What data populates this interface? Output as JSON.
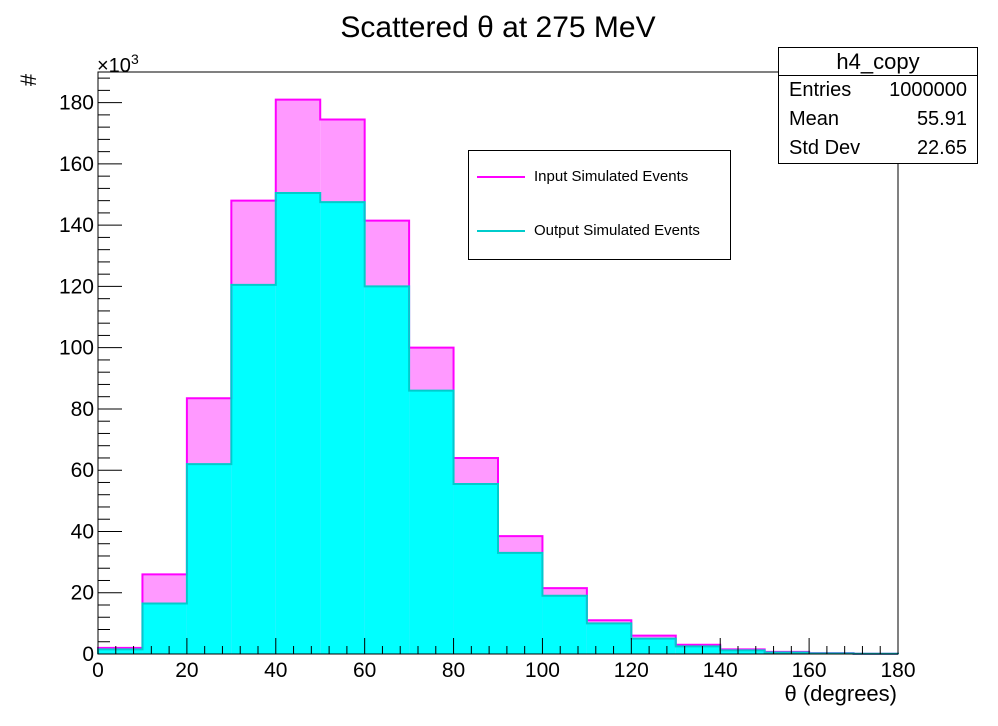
{
  "chart_data": {
    "type": "bar",
    "title": "Scattered θ at 275 MeV",
    "xlabel": "θ (degrees)",
    "ylabel": "#",
    "y_multiplier_label": "×10",
    "y_multiplier_exp": "3",
    "xlim": [
      0,
      180
    ],
    "ylim": [
      0,
      190
    ],
    "x_ticks": [
      0,
      20,
      40,
      60,
      80,
      100,
      120,
      140,
      160,
      180
    ],
    "y_ticks": [
      0,
      20,
      40,
      60,
      80,
      100,
      120,
      140,
      160,
      180
    ],
    "bin_edges": [
      0,
      10,
      20,
      30,
      40,
      50,
      60,
      70,
      80,
      90,
      100,
      110,
      120,
      130,
      140,
      150,
      160,
      170,
      180
    ],
    "series": [
      {
        "name": "Input Simulated Events",
        "line_color": "#ff00ff",
        "fill_color": "#ff99ff",
        "values": [
          2.0,
          26.0,
          83.5,
          148.0,
          181.0,
          174.5,
          141.5,
          100.0,
          64.0,
          38.5,
          21.5,
          11.0,
          6.0,
          3.0,
          1.5,
          0.7,
          0.3,
          0.1
        ]
      },
      {
        "name": "Output Simulated Events",
        "line_color": "#00cccc",
        "fill_color": "#00ffff",
        "values": [
          1.5,
          16.5,
          62.0,
          120.5,
          150.5,
          147.5,
          120.0,
          86.0,
          55.5,
          33.0,
          19.0,
          10.0,
          5.0,
          2.5,
          1.2,
          0.5,
          0.2,
          0.1
        ]
      }
    ],
    "legend_position": "upper-center-right",
    "grid": false
  },
  "stats": {
    "title": "h4_copy",
    "rows": [
      {
        "label": "Entries",
        "value": "1000000"
      },
      {
        "label": "Mean",
        "value": "55.91"
      },
      {
        "label": "Std Dev",
        "value": "22.65"
      }
    ]
  },
  "legend": {
    "entries": [
      {
        "label": "Input Simulated Events",
        "color": "#ff00ff"
      },
      {
        "label": "Output Simulated Events",
        "color": "#00cccc"
      }
    ]
  }
}
